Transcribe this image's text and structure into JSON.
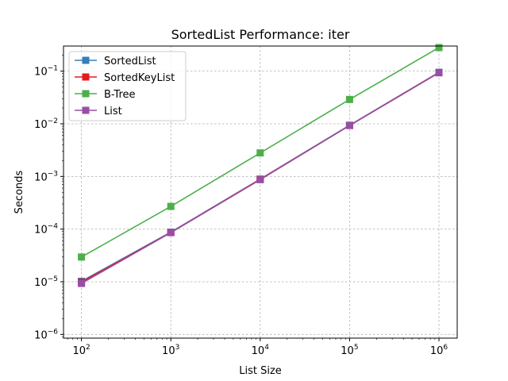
{
  "chart_data": {
    "type": "line",
    "title": "SortedList Performance: iter",
    "xlabel": "List Size",
    "ylabel": "Seconds",
    "x_scale": "log",
    "y_scale": "log",
    "x": [
      100,
      1000,
      10000,
      100000,
      1000000
    ],
    "xlim": [
      63,
      1600000
    ],
    "ylim": [
      8.5e-07,
      0.3
    ],
    "x_ticks": [
      {
        "value": 100,
        "base": "10",
        "exp": "2"
      },
      {
        "value": 1000,
        "base": "10",
        "exp": "3"
      },
      {
        "value": 10000,
        "base": "10",
        "exp": "4"
      },
      {
        "value": 100000,
        "base": "10",
        "exp": "5"
      },
      {
        "value": 1000000,
        "base": "10",
        "exp": "6"
      }
    ],
    "y_ticks": [
      {
        "value": 1e-06,
        "base": "10",
        "exp": "−6"
      },
      {
        "value": 1e-05,
        "base": "10",
        "exp": "−5"
      },
      {
        "value": 0.0001,
        "base": "10",
        "exp": "−4"
      },
      {
        "value": 0.001,
        "base": "10",
        "exp": "−3"
      },
      {
        "value": 0.01,
        "base": "10",
        "exp": "−2"
      },
      {
        "value": 0.1,
        "base": "10",
        "exp": "−1"
      }
    ],
    "grid": true,
    "legend_position": "top-left",
    "series": [
      {
        "name": "SortedList",
        "color": "#377eb8",
        "marker": "square",
        "values": [
          1.02e-05,
          8.75e-05,
          0.00089,
          0.0094,
          0.095
        ]
      },
      {
        "name": "SortedKeyList",
        "color": "#e41a1c",
        "marker": "square",
        "values": [
          9.8e-06,
          8.62e-05,
          0.00088,
          0.0093,
          0.094
        ]
      },
      {
        "name": "B-Tree",
        "color": "#4daf4a",
        "marker": "square",
        "values": [
          2.95e-05,
          0.00027,
          0.0028,
          0.029,
          0.28
        ]
      },
      {
        "name": "List",
        "color": "#984ea3",
        "marker": "square",
        "values": [
          9.3e-06,
          8.58e-05,
          0.00087,
          0.0093,
          0.093
        ]
      }
    ]
  }
}
